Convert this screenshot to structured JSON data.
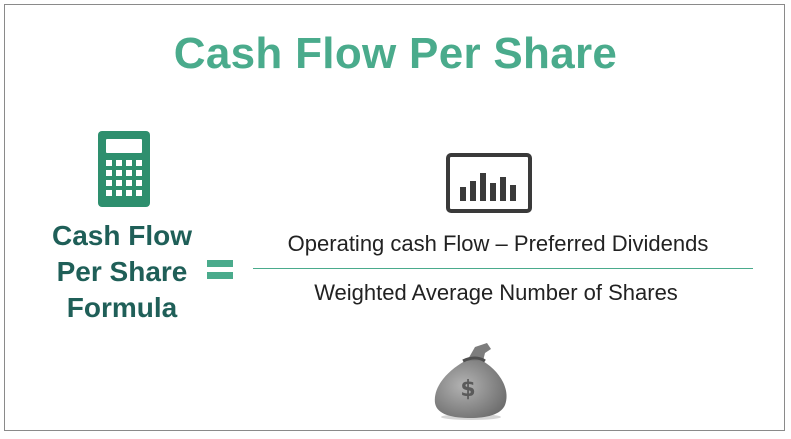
{
  "title": "Cash Flow Per Share",
  "formula_label": {
    "line1": "Cash Flow",
    "line2": "Per Share",
    "line3": "Formula"
  },
  "numerator": "Operating cash Flow – Preferred Dividends",
  "denominator": "Weighted Average Number of Shares",
  "icons": {
    "calculator": "calculator-icon",
    "equals": "equals-icon",
    "chart": "bar-chart-icon",
    "money_bag": "money-bag-icon",
    "money_bag_symbol": "$"
  },
  "colors": {
    "title": "#4aab8c",
    "label": "#1f5f58",
    "accent": "#4aab8c",
    "calculator": "#2e8f6e",
    "chart": "#3a3a3a",
    "money_bag": "#8a8a8a"
  }
}
